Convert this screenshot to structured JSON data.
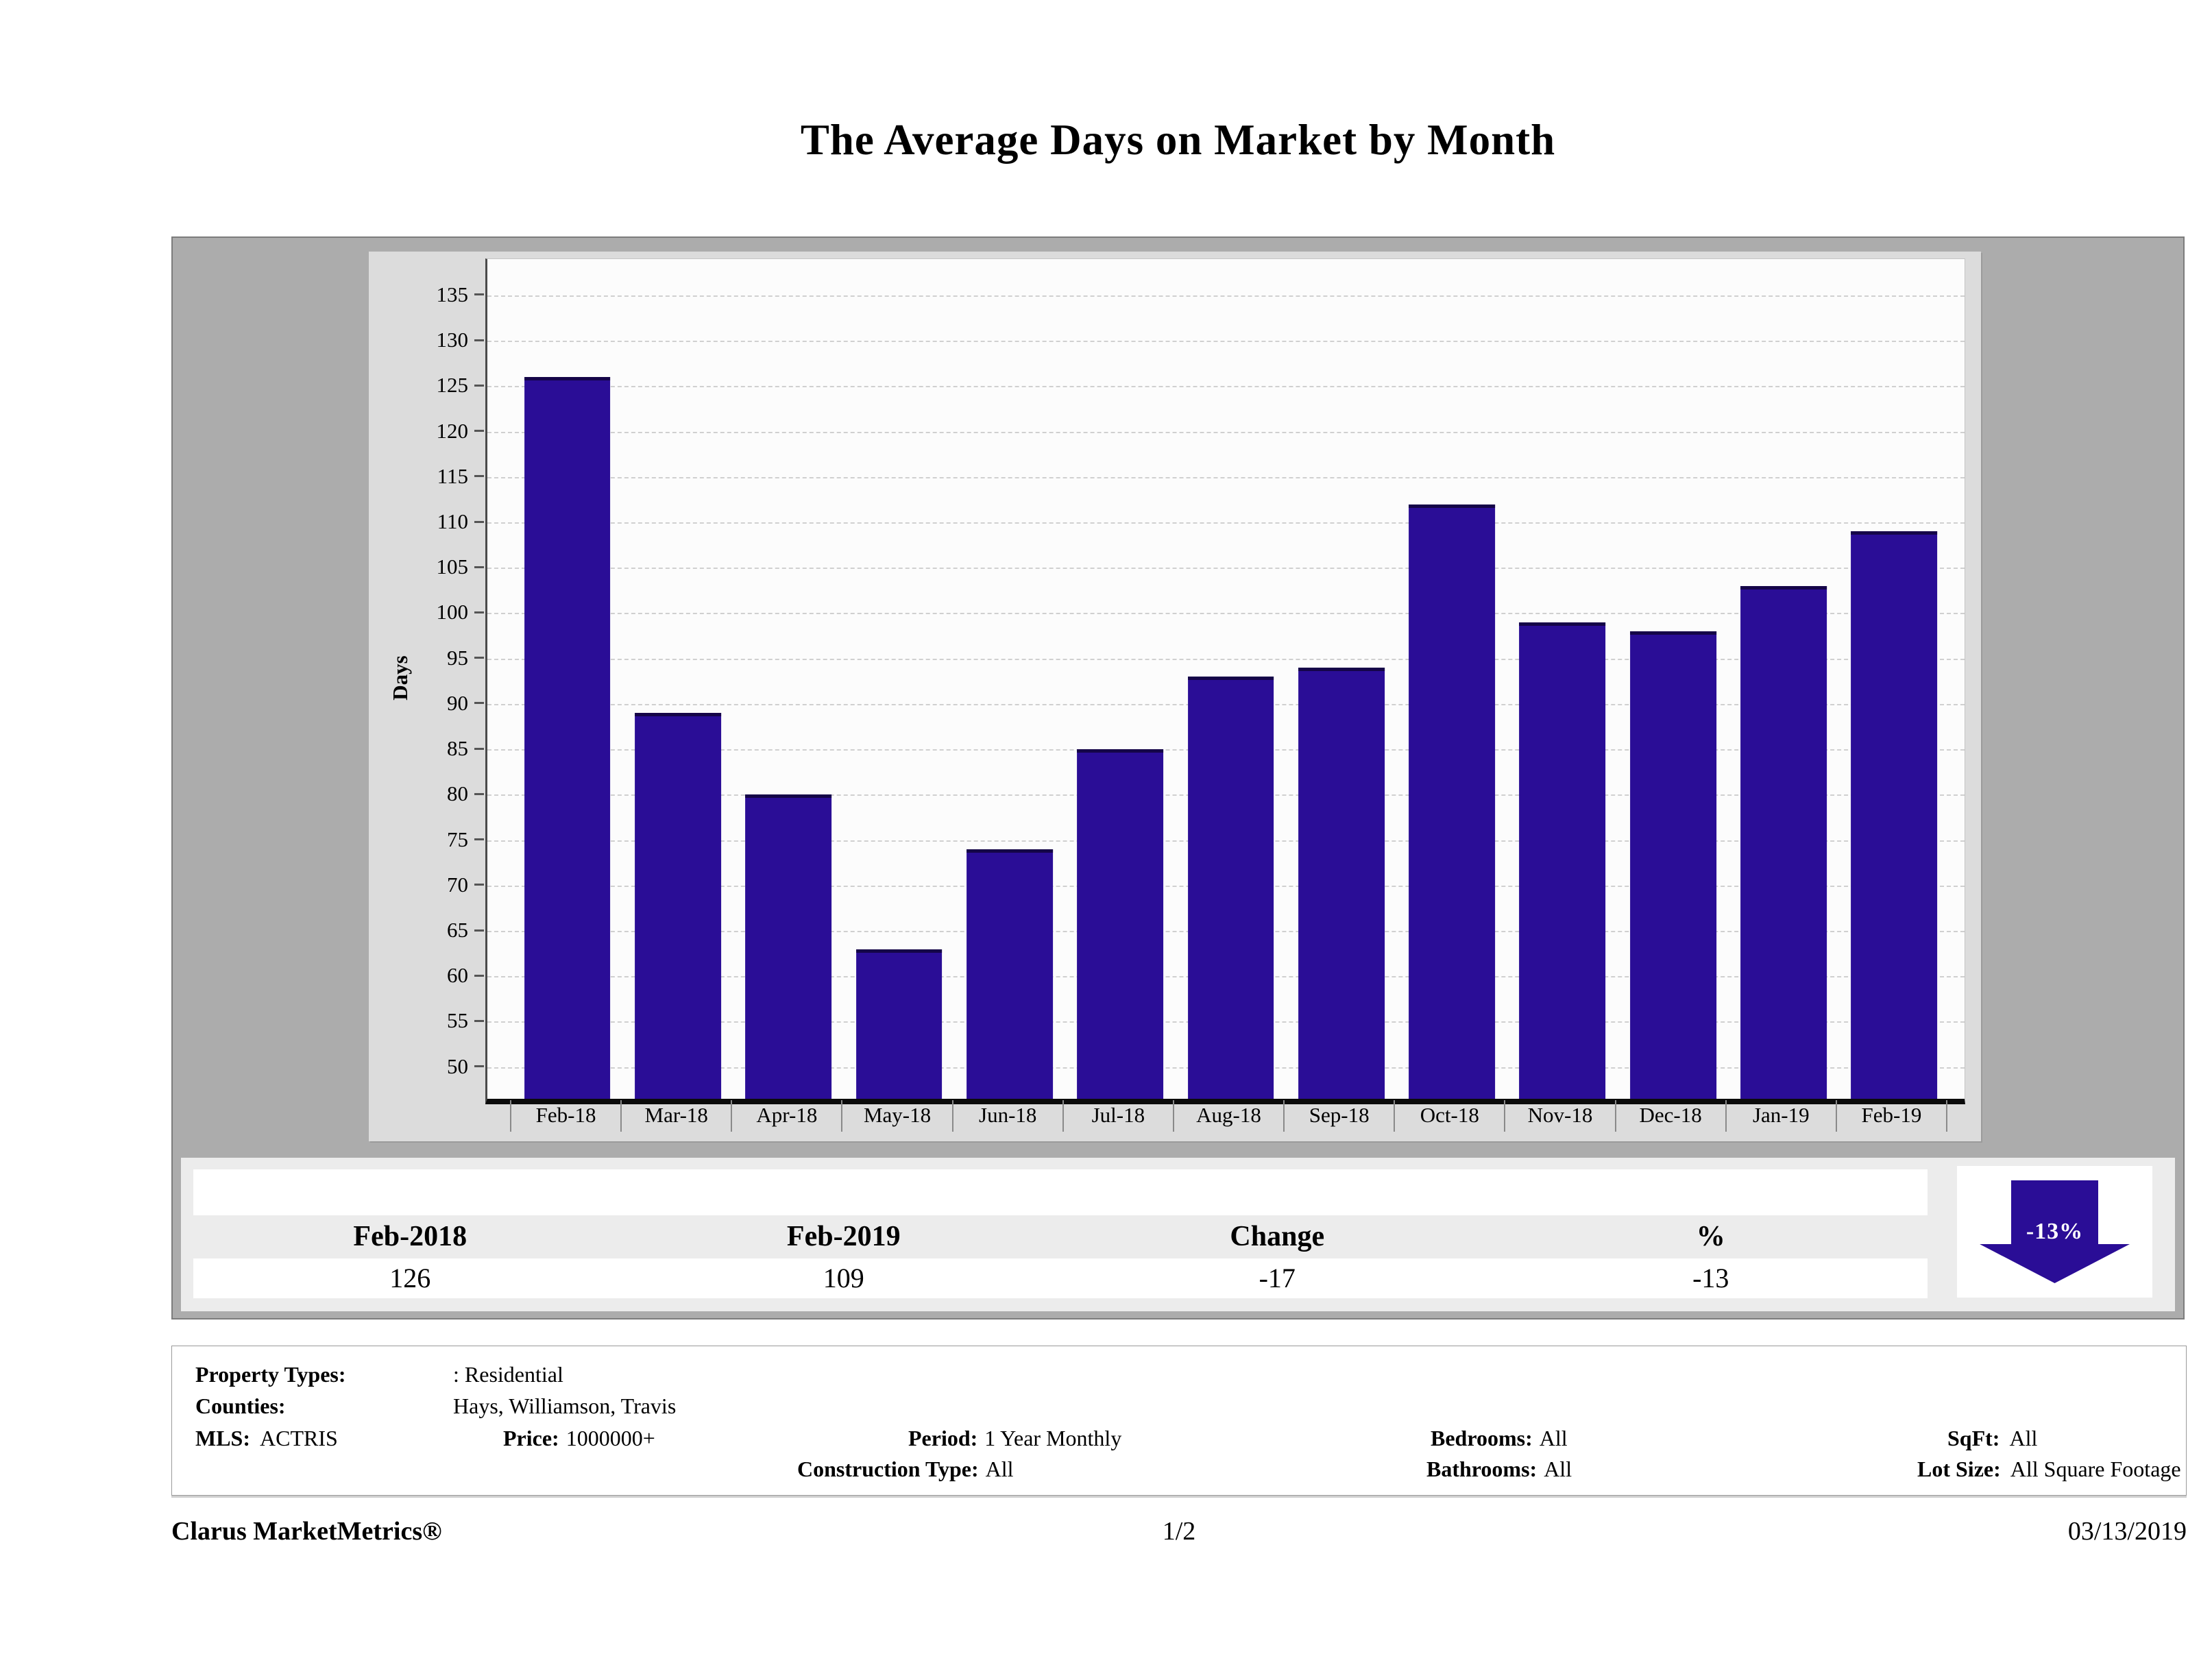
{
  "title": "The Average Days on Market by Month",
  "chart_data": {
    "type": "bar",
    "title": "The Average Days on Market by Month",
    "xlabel": "",
    "ylabel": "Days",
    "categories": [
      "Feb-18",
      "Mar-18",
      "Apr-18",
      "May-18",
      "Jun-18",
      "Jul-18",
      "Aug-18",
      "Sep-18",
      "Oct-18",
      "Nov-18",
      "Dec-18",
      "Jan-19",
      "Feb-19"
    ],
    "values": [
      126,
      89,
      80,
      63,
      74,
      85,
      93,
      94,
      112,
      99,
      98,
      103,
      109
    ],
    "ylim": [
      46.5,
      139
    ],
    "yticks": [
      50,
      55,
      60,
      65,
      70,
      75,
      80,
      85,
      90,
      95,
      100,
      105,
      110,
      115,
      120,
      125,
      130,
      135
    ],
    "grid": "horizontal-dashed",
    "legend": "none",
    "bar_color": "#2a0d96"
  },
  "summary": {
    "columns": [
      "Feb-2018",
      "Feb-2019",
      "Change",
      "%"
    ],
    "values": [
      "126",
      "109",
      "-17",
      "-13"
    ],
    "arrow_label": "-13%",
    "arrow_direction": "down"
  },
  "filters": {
    "property_types_label": "Property Types:",
    "property_types_value": ": Residential",
    "counties_label": "Counties:",
    "counties_value": "Hays, Williamson, Travis",
    "mls_label": "MLS:",
    "mls_value": "ACTRIS",
    "price_label": "Price:",
    "price_value": "1000000+",
    "period_label": "Period:",
    "period_value": "1 Year Monthly",
    "bedrooms_label": "Bedrooms:",
    "bedrooms_value": "All",
    "sqft_label": "SqFt:",
    "sqft_value": "All",
    "construction_label": "Construction Type:",
    "construction_value": "All",
    "bathrooms_label": "Bathrooms:",
    "bathrooms_value": "All",
    "lot_size_label": "Lot Size:",
    "lot_size_value": "All Square Footage"
  },
  "footer": {
    "brand": "Clarus MarketMetrics®",
    "page": "1/2",
    "date": "03/13/2019"
  },
  "colors": {
    "bar": "#2a0d96",
    "panel_gray": "#acacac",
    "chart_bg": "#dcdcdc",
    "summary_band": "#ececec"
  }
}
